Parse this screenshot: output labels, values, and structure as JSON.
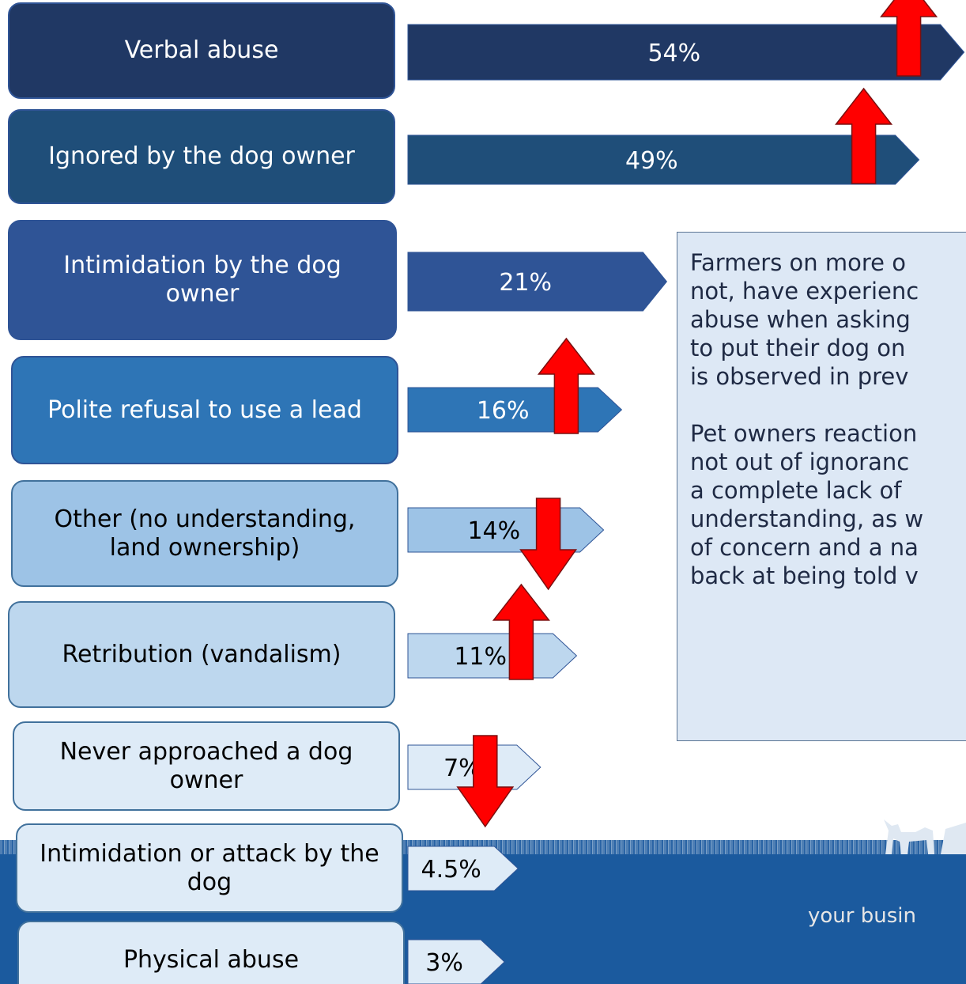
{
  "chart_data": {
    "type": "bar",
    "orientation": "horizontal",
    "categories": [
      "Verbal abuse",
      "Ignored by the dog owner",
      "Intimidation by the dog owner",
      "Polite refusal to use a lead",
      "Other (no understanding, land ownership)",
      "Retribution (vandalism)",
      "Never approached a dog owner",
      "Intimidation or attack by the dog",
      "Physical abuse"
    ],
    "values": [
      54,
      49,
      21,
      16,
      14,
      11,
      7,
      4.5,
      3
    ],
    "value_labels": [
      "54%",
      "49%",
      "21%",
      "16%",
      "14%",
      "11%",
      "7%",
      "4.5%",
      "3%"
    ],
    "colors": [
      "#203864",
      "#1f4e79",
      "#2f5496",
      "#2e75b6",
      "#9dc3e6",
      "#bdd7ee",
      "#deebf7",
      "#deebf7",
      "#deebf7"
    ],
    "trend": [
      "up",
      "up",
      null,
      "up",
      "down",
      "up",
      "down",
      null,
      null
    ],
    "trend_color": "#ff0000"
  },
  "annotation": [
    [
      "Farmers on more o",
      "not, have experienc",
      "abuse when asking",
      "to put their dog on",
      "is observed in prev"
    ],
    [
      "Pet owners reaction",
      "not out of ignoranc",
      "a complete lack of",
      "understanding, as w",
      "of concern and a na",
      "back at being told v"
    ]
  ],
  "footer": "your busin"
}
